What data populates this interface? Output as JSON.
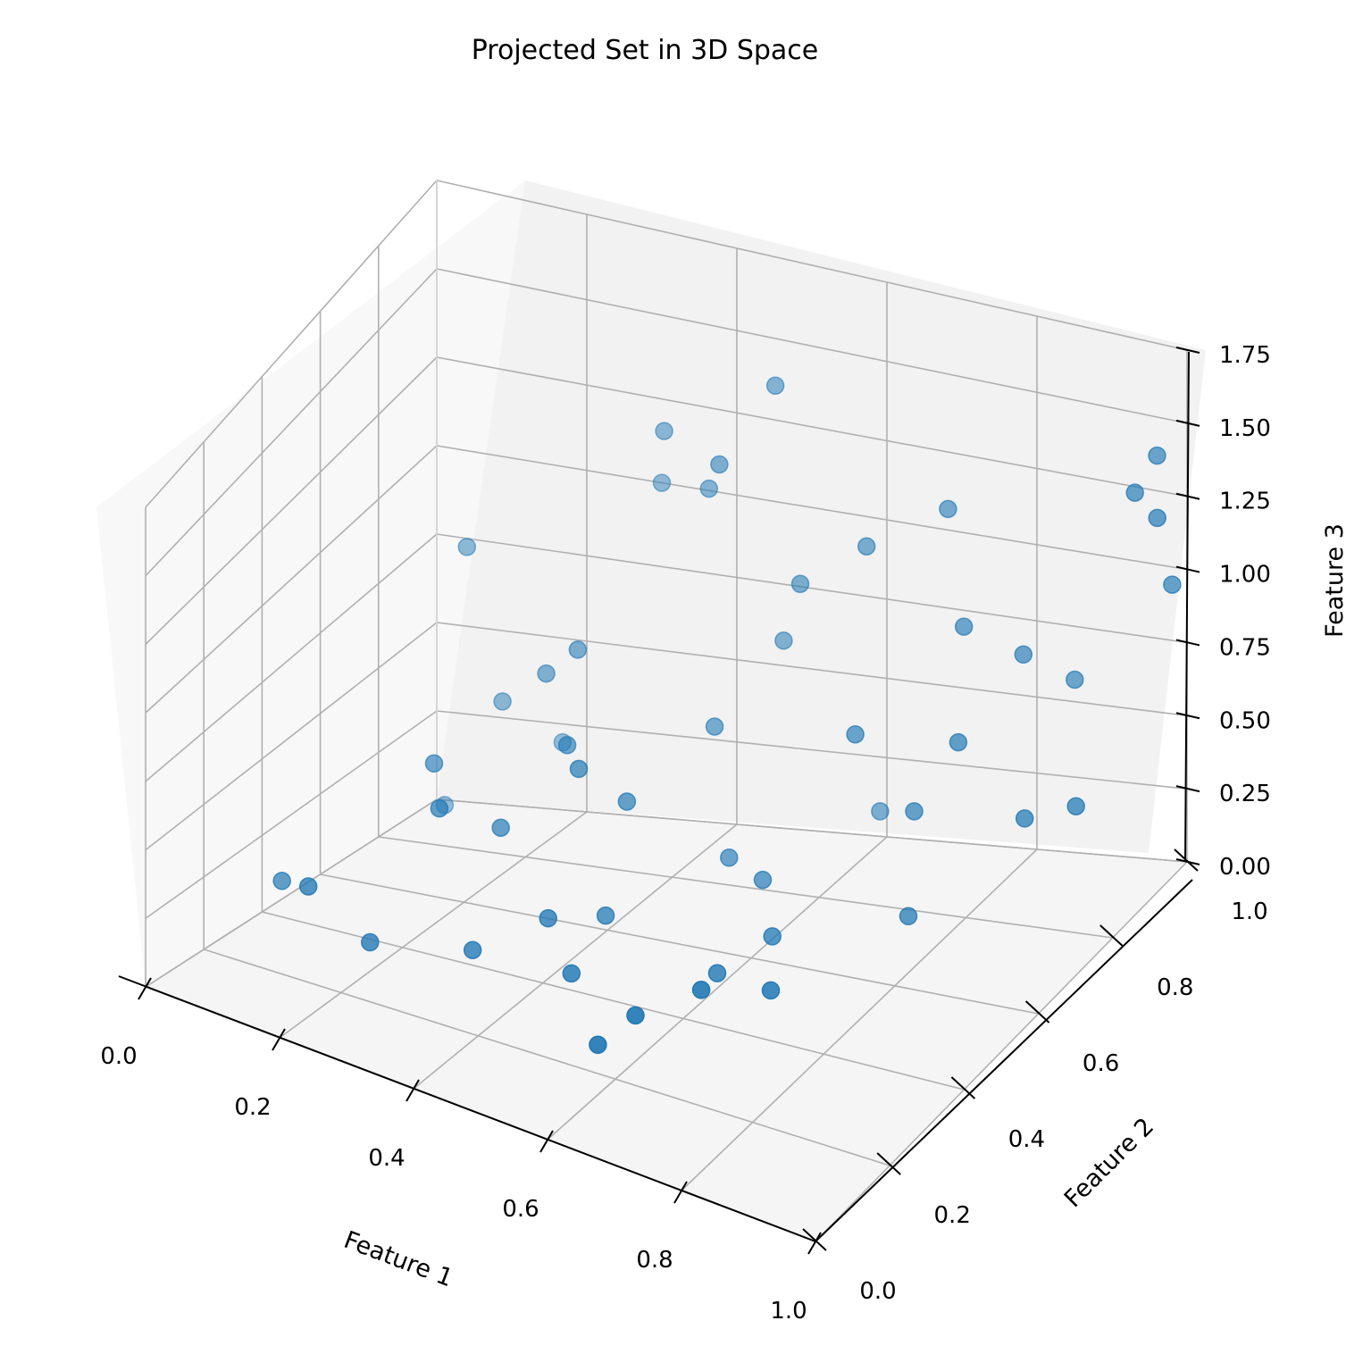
{
  "chart_data": {
    "type": "scatter",
    "projection": "3d",
    "title": "Projected Set in 3D Space",
    "xlabel": "Feature 1",
    "ylabel": "Feature 2",
    "zlabel": "Feature 3",
    "xlim": [
      0.0,
      1.0
    ],
    "ylim": [
      0.0,
      1.0
    ],
    "zlim": [
      0.0,
      1.75
    ],
    "xticks": [
      "0.0",
      "0.2",
      "0.4",
      "0.6",
      "0.8",
      "1.0"
    ],
    "yticks": [
      "0.0",
      "0.2",
      "0.4",
      "0.6",
      "0.8",
      "1.0"
    ],
    "zticks": [
      "0.00",
      "0.25",
      "0.50",
      "0.75",
      "1.00",
      "1.25",
      "1.50",
      "1.75"
    ],
    "grid": true,
    "marker_color": "#1f77b4",
    "pane_colors": {
      "back": "#f2f2f2",
      "left": "#f8f8f8",
      "floor": "#f5f5f5"
    },
    "grid_color": "#b0b0b0",
    "points": [
      {
        "x": 0.02,
        "y": 0.42,
        "z": 0.1
      },
      {
        "x": 0.1,
        "y": 0.32,
        "z": 0.2
      },
      {
        "x": 0.18,
        "y": 0.34,
        "z": 0.05
      },
      {
        "x": 0.15,
        "y": 0.62,
        "z": 0.4
      },
      {
        "x": 0.38,
        "y": 0.46,
        "z": 0.15
      },
      {
        "x": 0.26,
        "y": 0.58,
        "z": 0.28
      },
      {
        "x": 0.2,
        "y": 0.52,
        "z": 0.36
      },
      {
        "x": 0.3,
        "y": 0.4,
        "z": 0.05
      },
      {
        "x": 0.42,
        "y": 0.55,
        "z": 0.1
      },
      {
        "x": 0.45,
        "y": 0.38,
        "z": 0.08
      },
      {
        "x": 0.55,
        "y": 0.25,
        "z": 0.03
      },
      {
        "x": 0.3,
        "y": 0.7,
        "z": 0.46
      },
      {
        "x": 0.22,
        "y": 0.82,
        "z": 0.55
      },
      {
        "x": 0.14,
        "y": 0.87,
        "z": 0.4
      },
      {
        "x": 0.28,
        "y": 0.78,
        "z": 0.68
      },
      {
        "x": 0.36,
        "y": 0.6,
        "z": 0.5
      },
      {
        "x": 0.4,
        "y": 0.66,
        "z": 0.36
      },
      {
        "x": 0.18,
        "y": 0.97,
        "z": 0.22
      },
      {
        "x": 0.1,
        "y": 0.85,
        "z": 0.86
      },
      {
        "x": 0.05,
        "y": 0.9,
        "z": 0.05
      },
      {
        "x": 0.58,
        "y": 0.3,
        "z": 0.1
      },
      {
        "x": 0.6,
        "y": 0.5,
        "z": 0.05
      },
      {
        "x": 0.7,
        "y": 0.45,
        "z": 0.1
      },
      {
        "x": 0.65,
        "y": 0.35,
        "z": 0.18
      },
      {
        "x": 0.62,
        "y": 0.62,
        "z": 0.06
      },
      {
        "x": 0.5,
        "y": 0.75,
        "z": 0.14
      },
      {
        "x": 0.48,
        "y": 0.96,
        "z": 0.62
      },
      {
        "x": 0.44,
        "y": 0.84,
        "z": 0.45
      },
      {
        "x": 0.56,
        "y": 0.72,
        "z": 0.12
      },
      {
        "x": 0.6,
        "y": 0.98,
        "z": 0.1
      },
      {
        "x": 0.64,
        "y": 0.82,
        "z": 0.52
      },
      {
        "x": 0.72,
        "y": 0.82,
        "z": 0.3
      },
      {
        "x": 0.76,
        "y": 0.72,
        "z": 0.08
      },
      {
        "x": 0.52,
        "y": 0.92,
        "z": 0.85
      },
      {
        "x": 0.38,
        "y": 0.96,
        "z": 1.05
      },
      {
        "x": 0.3,
        "y": 1.0,
        "z": 1.0
      },
      {
        "x": 0.32,
        "y": 0.96,
        "z": 1.2
      },
      {
        "x": 0.42,
        "y": 0.9,
        "z": 1.2
      },
      {
        "x": 0.46,
        "y": 0.98,
        "z": 1.38
      },
      {
        "x": 0.6,
        "y": 0.94,
        "z": 0.98
      },
      {
        "x": 0.7,
        "y": 0.96,
        "z": 1.12
      },
      {
        "x": 0.74,
        "y": 0.92,
        "z": 0.8
      },
      {
        "x": 0.78,
        "y": 0.82,
        "z": 0.55
      },
      {
        "x": 0.82,
        "y": 0.92,
        "z": 0.74
      },
      {
        "x": 0.86,
        "y": 0.98,
        "z": 0.6
      },
      {
        "x": 0.88,
        "y": 0.8,
        "z": 0.36
      },
      {
        "x": 0.94,
        "y": 0.82,
        "z": 0.4
      },
      {
        "x": 0.96,
        "y": 0.94,
        "z": 1.32
      },
      {
        "x": 1.0,
        "y": 0.96,
        "z": 1.0
      },
      {
        "x": 0.97,
        "y": 0.98,
        "z": 1.4
      },
      {
        "x": 1.0,
        "y": 0.92,
        "z": 1.28
      }
    ]
  }
}
